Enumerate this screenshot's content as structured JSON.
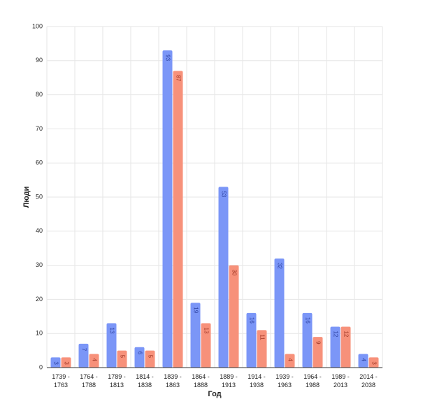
{
  "chart_data": {
    "type": "bar",
    "x_label": "Год",
    "y_label": "Люди",
    "categories": [
      "1739 -\n1763",
      "1764 -\n1788",
      "1789 -\n1813",
      "1814 -\n1838",
      "1839 -\n1863",
      "1864 -\n1888",
      "1889 -\n1913",
      "1914 -\n1938",
      "1939 -\n1963",
      "1964 -\n1988",
      "1989 -\n2013",
      "2014 -\n2038"
    ],
    "series": [
      {
        "color": "#7b96f7",
        "values": [
          3,
          7,
          13,
          6,
          93,
          19,
          53,
          16,
          32,
          16,
          12,
          4
        ]
      },
      {
        "color": "#f7917a",
        "values": [
          3,
          4,
          5,
          5,
          87,
          13,
          30,
          11,
          4,
          9,
          12,
          3
        ]
      }
    ],
    "ylim": [
      0,
      100
    ],
    "yticks": [
      0,
      10,
      20,
      30,
      40,
      50,
      60,
      70,
      80,
      90,
      100
    ],
    "grid": true
  }
}
